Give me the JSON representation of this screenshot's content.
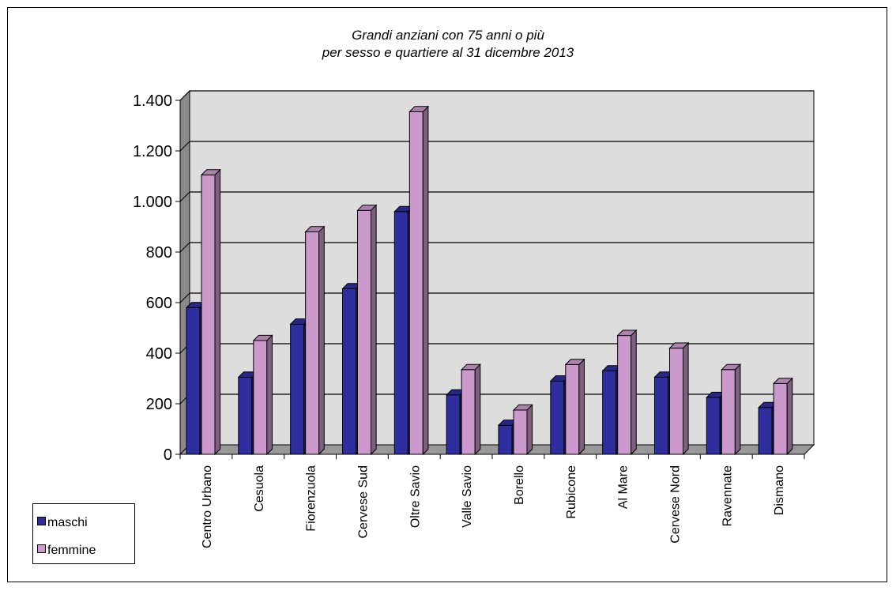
{
  "chart_data": {
    "type": "bar",
    "title": [
      "Grandi anziani con 75 anni o più",
      "per sesso e quartiere al 31 dicembre 2013"
    ],
    "xlabel": "",
    "ylabel": "",
    "categories": [
      "Centro Urbano",
      "Cesuola",
      "Fiorenzuola",
      "Cervese Sud",
      "Oltre Savio",
      "Valle Savio",
      "Borello",
      "Rubicone",
      "Al Mare",
      "Cervese Nord",
      "Ravennate",
      "Dismano"
    ],
    "series": [
      {
        "name": "maschi",
        "color": "#2E2E9E",
        "values": [
          580,
          305,
          515,
          655,
          960,
          235,
          115,
          290,
          330,
          305,
          225,
          185
        ]
      },
      {
        "name": "femmine",
        "color": "#CC99CC",
        "values": [
          1105,
          450,
          880,
          965,
          1355,
          335,
          175,
          355,
          470,
          420,
          335,
          280
        ]
      }
    ],
    "ylim": [
      0,
      1400
    ],
    "yticks": [
      0,
      200,
      400,
      600,
      800,
      1000,
      1200,
      1400
    ],
    "ytick_labels": [
      "0",
      "200",
      "400",
      "600",
      "800",
      "1.000",
      "1.200",
      "1.400"
    ],
    "grid": true,
    "legend_position": "bottom-left",
    "wall_color": "#DDDDDD",
    "floor_color": "#999999"
  }
}
